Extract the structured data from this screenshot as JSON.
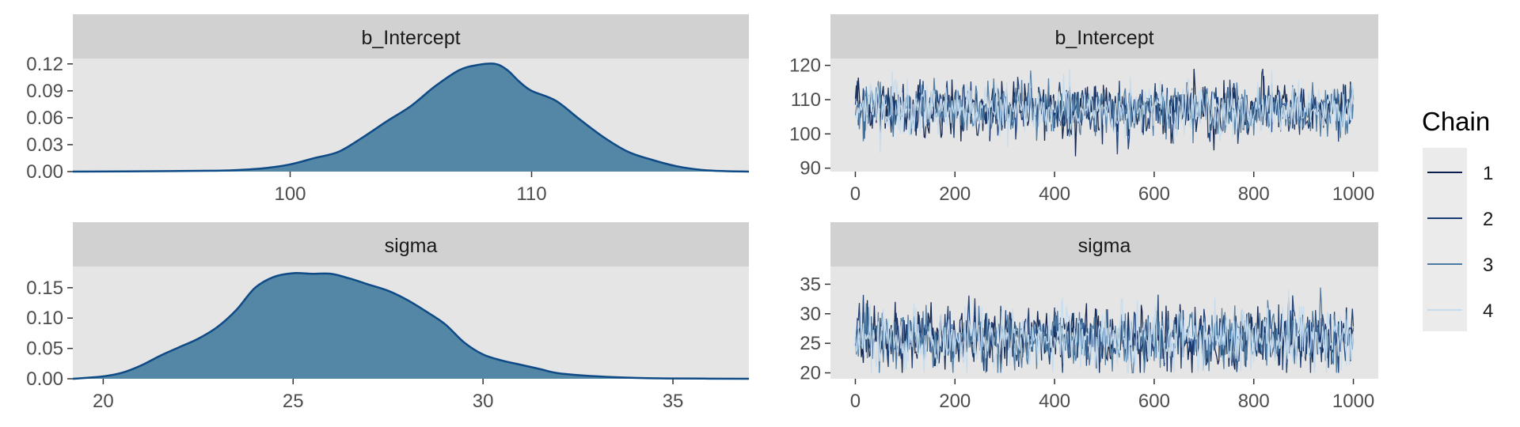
{
  "colors": {
    "panel_bg": "#E5E5E5",
    "strip_bg": "#D1D1D1",
    "density_fill": "#5487A6",
    "density_line": "#0E4A86",
    "chains": [
      "#0B1D4A",
      "#173B72",
      "#4C7AA2",
      "#C5DCEE"
    ]
  },
  "legend": {
    "title": "Chain",
    "labels": [
      "1",
      "2",
      "3",
      "4"
    ]
  },
  "chart_data": [
    {
      "type": "area",
      "title": "b_Intercept",
      "xlim": [
        91,
        119
      ],
      "ylim": [
        0,
        0.126
      ],
      "xticks": [
        100,
        110
      ],
      "yticks": [
        0.0,
        0.03,
        0.06,
        0.09,
        0.12
      ],
      "ytick_labels": [
        "0.00",
        "0.03",
        "0.06",
        "0.09",
        "0.12"
      ],
      "x": [
        91,
        95,
        97,
        98,
        99,
        100,
        101,
        102,
        103,
        104,
        105,
        106,
        107,
        107.8,
        108.5,
        109,
        109.5,
        110,
        111,
        112,
        113,
        114,
        115,
        116,
        117,
        118,
        119
      ],
      "y": [
        0.0,
        0.0005,
        0.001,
        0.002,
        0.004,
        0.008,
        0.015,
        0.022,
        0.038,
        0.056,
        0.073,
        0.095,
        0.113,
        0.119,
        0.12,
        0.113,
        0.1,
        0.09,
        0.079,
        0.058,
        0.038,
        0.022,
        0.013,
        0.006,
        0.002,
        0.0005,
        0.0
      ]
    },
    {
      "type": "line",
      "title": "b_Intercept",
      "series": [
        {
          "name": "1"
        },
        {
          "name": "2"
        },
        {
          "name": "3"
        },
        {
          "name": "4"
        }
      ],
      "xlim": [
        -50,
        1050
      ],
      "ylim": [
        89,
        122
      ],
      "xticks": [
        0,
        200,
        400,
        600,
        800,
        1000
      ],
      "yticks": [
        90,
        100,
        110,
        120
      ],
      "x_range": [
        0,
        1000
      ],
      "mean": 107.3,
      "sd": 3.9,
      "range": [
        91,
        119
      ]
    },
    {
      "type": "area",
      "title": "sigma",
      "xlim": [
        19.2,
        37
      ],
      "ylim": [
        0,
        0.185
      ],
      "xticks": [
        20,
        25,
        30,
        35
      ],
      "yticks": [
        0.0,
        0.05,
        0.1,
        0.15
      ],
      "ytick_labels": [
        "0.00",
        "0.05",
        "0.10",
        "0.15"
      ],
      "x": [
        19.2,
        20,
        20.5,
        21,
        21.5,
        22,
        22.5,
        23,
        23.5,
        24,
        24.5,
        25,
        25.5,
        26,
        26.5,
        27,
        27.5,
        28,
        28.5,
        29,
        29.5,
        30,
        30.5,
        31,
        31.5,
        32,
        33,
        34,
        35,
        37
      ],
      "y": [
        0.0,
        0.004,
        0.01,
        0.022,
        0.038,
        0.052,
        0.066,
        0.085,
        0.113,
        0.15,
        0.168,
        0.174,
        0.173,
        0.173,
        0.165,
        0.155,
        0.145,
        0.13,
        0.111,
        0.09,
        0.06,
        0.04,
        0.03,
        0.023,
        0.016,
        0.009,
        0.004,
        0.0015,
        0.0005,
        0.0
      ]
    },
    {
      "type": "line",
      "title": "sigma",
      "series": [
        {
          "name": "1"
        },
        {
          "name": "2"
        },
        {
          "name": "3"
        },
        {
          "name": "4"
        }
      ],
      "xlim": [
        -50,
        1050
      ],
      "ylim": [
        19,
        38
      ],
      "xticks": [
        0,
        200,
        400,
        600,
        800,
        1000
      ],
      "yticks": [
        20,
        25,
        30,
        35
      ],
      "x_range": [
        0,
        1000
      ],
      "mean": 25.9,
      "sd": 2.6,
      "range": [
        20,
        37
      ]
    }
  ]
}
